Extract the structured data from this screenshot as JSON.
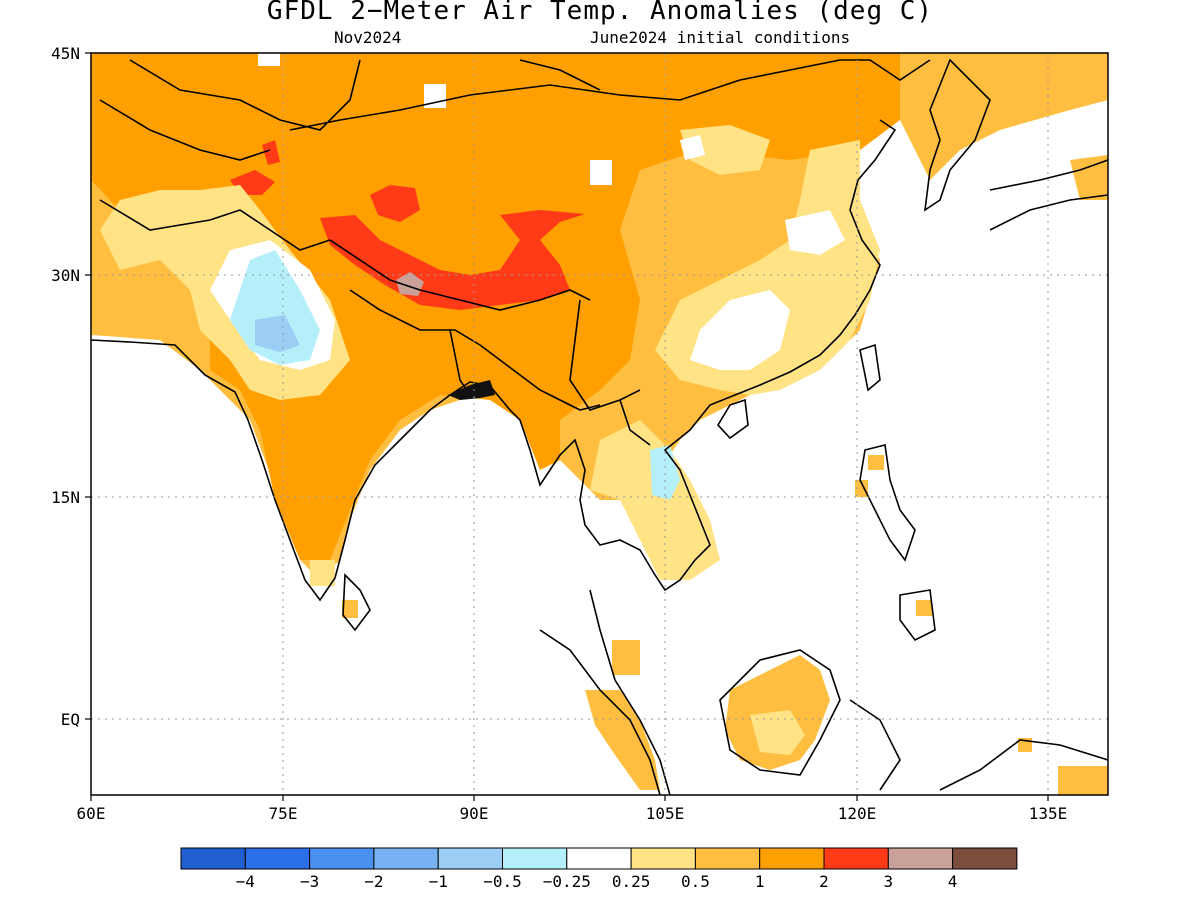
{
  "title": "GFDL 2−Meter Air Temp. Anomalies (deg C)",
  "subtitle_left": "Nov2024",
  "subtitle_right": "June2024 initial conditions",
  "map": {
    "lon_range": [
      60,
      140
    ],
    "lat_range": [
      -5.8,
      45
    ]
  },
  "axes": {
    "lat_ticks": [
      "45N",
      "30N",
      "15N",
      "EQ"
    ],
    "lon_ticks": [
      "60E",
      "75E",
      "90E",
      "105E",
      "120E",
      "135E"
    ]
  },
  "colorbar": {
    "colors": [
      "#1f5fd0",
      "#2a6ee8",
      "#4a90ef",
      "#79b2f2",
      "#9ccdf5",
      "#b4effa",
      "#ffffff",
      "#ffe385",
      "#ffbe3f",
      "#ff9f00",
      "#ff3a16",
      "#c9a198",
      "#7c4e3e"
    ],
    "labels": [
      "−4",
      "−3",
      "−2",
      "−1",
      "−0.5",
      "−0.25",
      "0.25",
      "0.5",
      "1",
      "2",
      "3",
      "4"
    ]
  }
}
